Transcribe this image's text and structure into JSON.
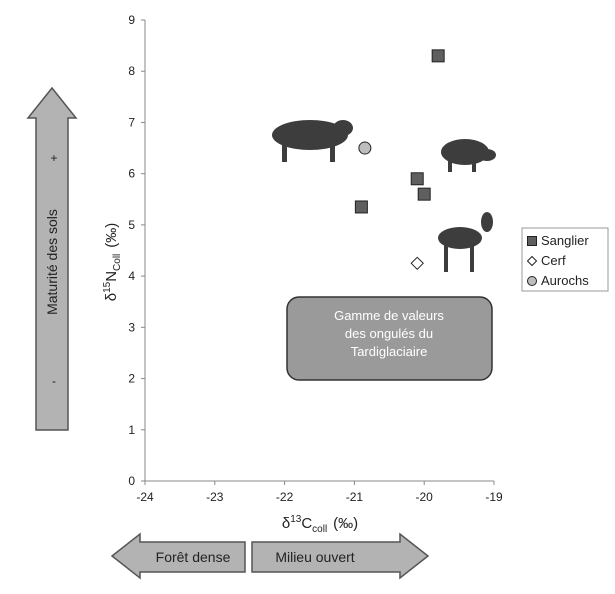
{
  "chart_data": {
    "type": "scatter",
    "x_label": {
      "symbol": "δ",
      "sup": "13",
      "letter": "C",
      "sub": "coll",
      "unit": "(‰)"
    },
    "y_label": {
      "symbol": "δ",
      "sup": "15",
      "letter": "N",
      "sub": "Coll",
      "unit": "(‰)"
    },
    "xlim": [
      -24,
      -19
    ],
    "xticks": [
      -24,
      -23,
      -22,
      -21,
      -20,
      -19
    ],
    "ylim": [
      0,
      9
    ],
    "yticks": [
      0,
      1,
      2,
      3,
      4,
      5,
      6,
      7,
      8,
      9
    ],
    "legend": "right",
    "series": [
      {
        "name": "Sanglier",
        "marker": "square",
        "color": "#5f5f5f",
        "x": [
          -19.8,
          -20.9,
          -20.1,
          -20.0
        ],
        "values": [
          8.3,
          5.35,
          5.9,
          5.6
        ]
      },
      {
        "name": "Cerf",
        "marker": "diamond",
        "color": "#ffffff",
        "x": [
          -20.1
        ],
        "values": [
          4.25
        ]
      },
      {
        "name": "Aurochs",
        "marker": "circle",
        "color": "#bdbdbd",
        "x": [
          -20.85
        ],
        "values": [
          6.5
        ]
      }
    ],
    "annotation": [
      "Gamme de valeurs",
      "des ongulés du",
      "Tardiglaciaire"
    ]
  },
  "y_arrow": {
    "label": "Maturité des sols",
    "plus": "+",
    "minus": "-"
  },
  "x_arrows": {
    "left": "Forêt dense",
    "right": "Milieu ouvert"
  }
}
